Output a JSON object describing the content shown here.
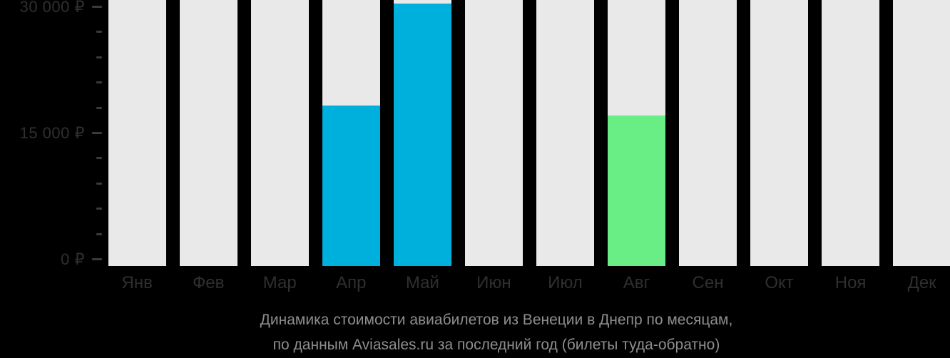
{
  "chart_data": {
    "type": "bar",
    "title": "Динамика стоимости авиабилетов из Венеции в Днепр по месяцам,",
    "subtitle": "по данным Aviasales.ru за последний год (билеты туда-обратно)",
    "categories": [
      "Янв",
      "Фев",
      "Мар",
      "Апр",
      "Май",
      "Июн",
      "Июл",
      "Авг",
      "Сен",
      "Окт",
      "Ноя",
      "Дек"
    ],
    "values": [
      null,
      null,
      null,
      18300,
      30400,
      null,
      null,
      17100,
      null,
      null,
      null,
      null
    ],
    "bar_colors": [
      null,
      null,
      null,
      "#00B0DC",
      "#00B0DC",
      null,
      null,
      "#69ED85",
      null,
      null,
      null,
      null
    ],
    "placeholder_bar_color": "#E9E9E9",
    "background_color": "#000000",
    "axis_label_color": "#2F2F2F",
    "tick_color": "#3A3A3A",
    "caption_color": "#8E8E8E",
    "currency": "₽",
    "y_axis": {
      "major_ticks": [
        {
          "value": 30000,
          "label": "30 000 ₽"
        },
        {
          "value": 15000,
          "label": "15 000 ₽"
        },
        {
          "value": 0,
          "label": "0 ₽"
        }
      ],
      "minor_tick_step": 3000,
      "ylim": [
        0,
        30850
      ],
      "grid": false
    },
    "legend": "none"
  }
}
